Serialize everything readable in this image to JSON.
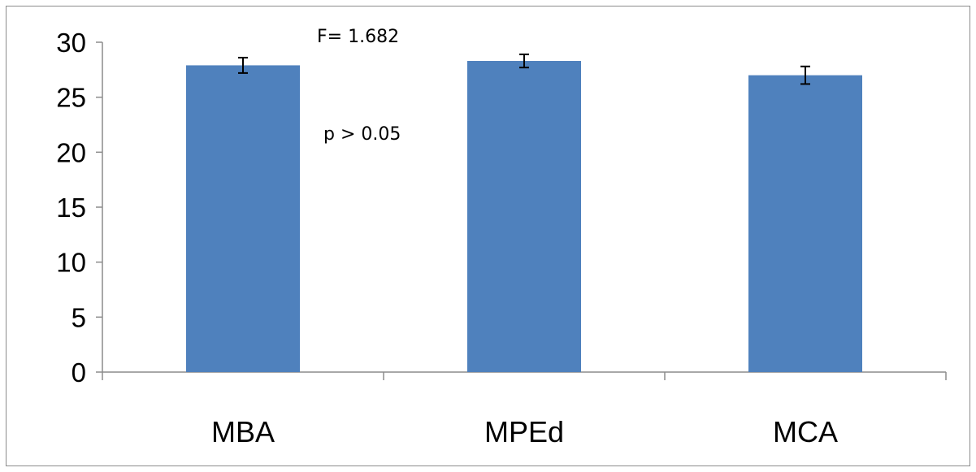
{
  "chart_data": {
    "type": "bar",
    "categories": [
      "MBA",
      "MPEd",
      "MCA"
    ],
    "values": [
      27.9,
      28.3,
      27.0
    ],
    "errors": [
      0.7,
      0.6,
      0.8
    ],
    "ylim": [
      0,
      30
    ],
    "yticks": [
      "0",
      "5",
      "10",
      "15",
      "20",
      "25",
      "30"
    ],
    "annotations": [
      "F= 1.682",
      "p > 0.05"
    ],
    "bar_color": "#4f81bd",
    "grid": false,
    "legend": "none"
  }
}
